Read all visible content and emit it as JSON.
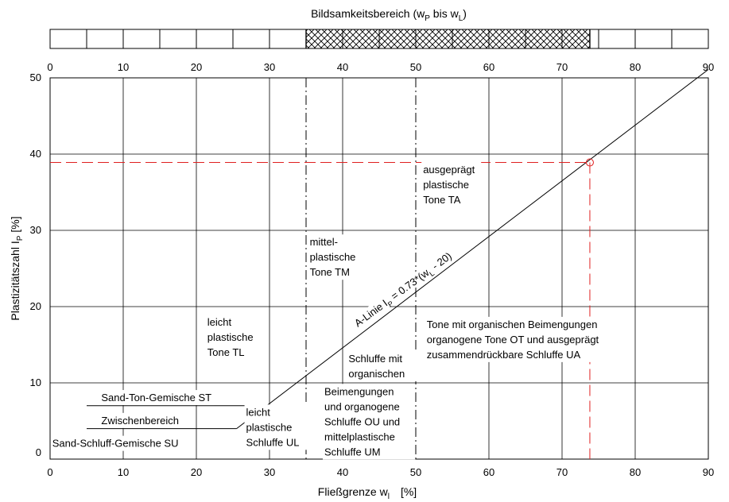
{
  "chart_data": {
    "type": "line",
    "title": "Bildsamkeitsbereich (w",
    "title_sub1": "P",
    "title_mid": " bis w",
    "title_sub2": "L",
    "title_end": ")",
    "xlabel": "Fließgrenze w",
    "xlabel_sub": "l",
    "xlabel_unit": "[%]",
    "ylabel": "Plastizitätszahl I",
    "ylabel_sub": "P",
    "ylabel_unit": "[%]",
    "xlim": [
      0,
      90
    ],
    "ylim": [
      0,
      50
    ],
    "xticks": [
      0,
      10,
      20,
      30,
      40,
      50,
      60,
      70,
      80,
      90
    ],
    "yticks": [
      0,
      10,
      20,
      30,
      40,
      50
    ],
    "xtick_labels": [
      "0",
      "10",
      "20",
      "30",
      "40",
      "50",
      "60",
      "70",
      "80",
      "90"
    ],
    "ytick_labels": [
      "0",
      "10",
      "20",
      "30",
      "40",
      "50"
    ],
    "grid": true,
    "band": {
      "cells": 18,
      "hatched_from": 35,
      "hatched_to": 73.8
    },
    "a_line": {
      "label": "A-Linie I",
      "label_sub": "P",
      "label_mid": " = 0.73*(w",
      "label_sub2": "L",
      "label_end": " - 20)",
      "x": [
        25.5,
        90
      ],
      "y": [
        4,
        51.1
      ]
    },
    "st_line": {
      "x": [
        5,
        32
      ],
      "y": [
        7,
        7
      ]
    },
    "su_line": {
      "x": [
        5,
        25.5
      ],
      "y": [
        4,
        4
      ]
    },
    "divider_35": 35,
    "divider_50": 50,
    "marker": {
      "x": 73.8,
      "y": 38.9,
      "color": "#e02020"
    },
    "regions": [
      {
        "lines": [
          "ausgeprägt",
          "plastische",
          "Tone TA"
        ],
        "x": 51,
        "y": 37.5
      },
      {
        "lines": [
          "mittel-",
          "plastische",
          "Tone TM"
        ],
        "x": 35.5,
        "y": 28
      },
      {
        "lines": [
          "leicht",
          "plastische",
          "Tone TL"
        ],
        "x": 21.5,
        "y": 17.5
      },
      {
        "lines": [
          "Tone mit organischen Beimengungen",
          "organogene Tone OT und ausgeprägt",
          "zusammendrückbare Schluffe UA"
        ],
        "x": 51.5,
        "y": 17.2
      },
      {
        "lines": [
          "Schluffe mit",
          "organischen"
        ],
        "x": 40.8,
        "y": 12.7
      },
      {
        "lines": [
          "Beimengungen",
          "und organogene",
          "Schluffe OU und",
          "mittelplastische",
          "Schluffe UM"
        ],
        "x": 37.5,
        "y": 8.4
      },
      {
        "lines": [
          "leicht",
          "plastische",
          "Schluffe UL"
        ],
        "x": 26.8,
        "y": 5.7
      },
      {
        "lines": [
          "Sand-Ton-Gemische ST"
        ],
        "x": 7,
        "y": 7.6
      },
      {
        "lines": [
          "Zwischenbereich"
        ],
        "x": 7,
        "y": 4.6
      },
      {
        "lines": [
          "Sand-Schluff-Gemische SU"
        ],
        "x": 0.3,
        "y": 1.6
      }
    ]
  }
}
